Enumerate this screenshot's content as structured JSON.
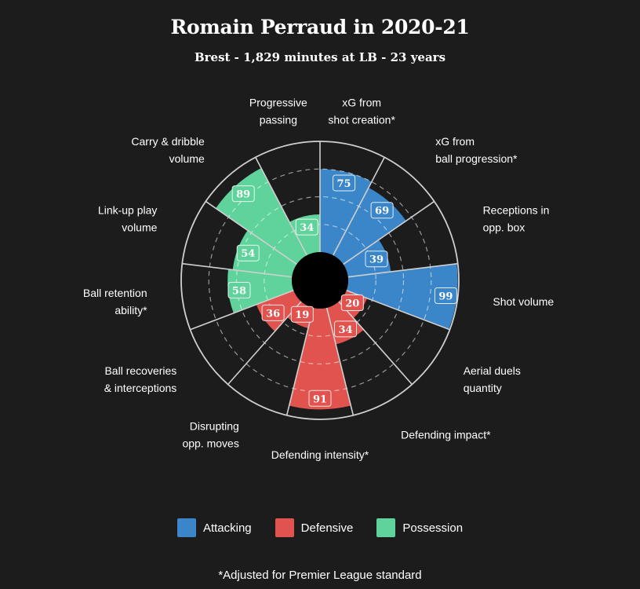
{
  "title": "Romain Perraud in 2020-21",
  "subtitle": "Brest - 1,829 minutes at LB - 23 years",
  "footnote": "*Adjusted for Premier League standard",
  "colors": {
    "background": "#1c1c1c",
    "attacking": "#3b86c8",
    "defensive": "#e0534f",
    "possession": "#5fd39b",
    "grid": "#cfcfcf"
  },
  "legend": [
    {
      "name": "Attacking",
      "color": "#3b86c8"
    },
    {
      "name": "Defensive",
      "color": "#e0534f"
    },
    {
      "name": "Possession",
      "color": "#5fd39b"
    }
  ],
  "chart_data": {
    "type": "polar-bar",
    "title": "Romain Perraud in 2020-21",
    "subtitle": "Brest - 1,829 minutes at LB - 23 years",
    "rlim": [
      0,
      100
    ],
    "grid": true,
    "legend_position": "bottom",
    "categories": [
      {
        "label": [
          "xG from",
          "shot creation*"
        ],
        "value": 75,
        "group": "Attacking"
      },
      {
        "label": [
          "xG from",
          "ball progression*"
        ],
        "value": 69,
        "group": "Attacking"
      },
      {
        "label": [
          "Receptions in",
          "opp. box"
        ],
        "value": 39,
        "group": "Attacking"
      },
      {
        "label": [
          "Shot volume"
        ],
        "value": 99,
        "group": "Attacking"
      },
      {
        "label": [
          "Aerial duels",
          "quantity"
        ],
        "value": 20,
        "group": "Defensive"
      },
      {
        "label": [
          "Defending impact*"
        ],
        "value": 34,
        "group": "Defensive"
      },
      {
        "label": [
          "Defending intensity*"
        ],
        "value": 91,
        "group": "Defensive"
      },
      {
        "label": [
          "Disrupting",
          "opp. moves"
        ],
        "value": 19,
        "group": "Defensive"
      },
      {
        "label": [
          "Ball recoveries",
          "& interceptions"
        ],
        "value": 36,
        "group": "Defensive"
      },
      {
        "label": [
          "Ball retention",
          "ability*"
        ],
        "value": 58,
        "group": "Possession"
      },
      {
        "label": [
          "Link-up play",
          "volume"
        ],
        "value": 54,
        "group": "Possession"
      },
      {
        "label": [
          "Carry & dribble",
          "volume"
        ],
        "value": 89,
        "group": "Possession"
      },
      {
        "label": [
          "Progressive",
          "passing"
        ],
        "value": 34,
        "group": "Possession"
      }
    ]
  }
}
